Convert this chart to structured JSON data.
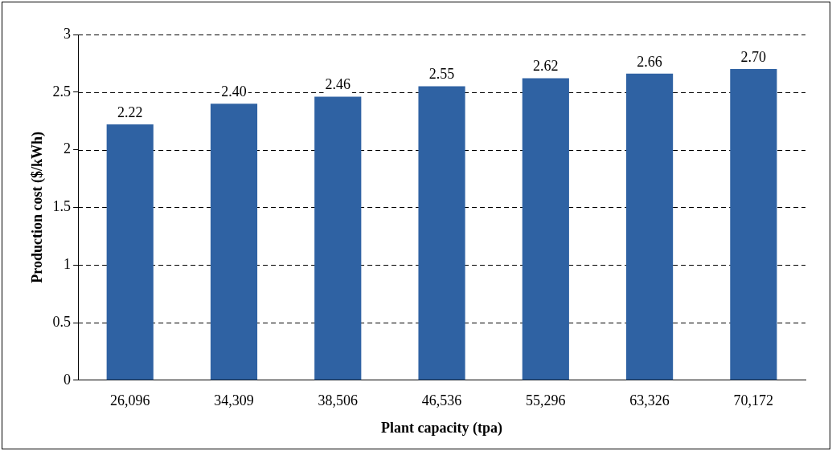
{
  "chart_data": {
    "type": "bar",
    "xlabel": "Plant capacity (tpa)",
    "ylabel": "Production cost ($/kWh)",
    "categories": [
      "26,096",
      "34,309",
      "38,506",
      "46,536",
      "55,296",
      "63,326",
      "70,172"
    ],
    "values": [
      2.22,
      2.4,
      2.46,
      2.55,
      2.62,
      2.66,
      2.7
    ],
    "value_labels": [
      "2.22",
      "2.40",
      "2.46",
      "2.55",
      "2.62",
      "2.66",
      "2.70"
    ],
    "color": "#2f62a3",
    "ylim": [
      0,
      3
    ],
    "yticks": [
      0,
      0.5,
      1,
      1.5,
      2,
      2.5,
      3
    ],
    "grid": "y",
    "line_style": "dashed"
  }
}
